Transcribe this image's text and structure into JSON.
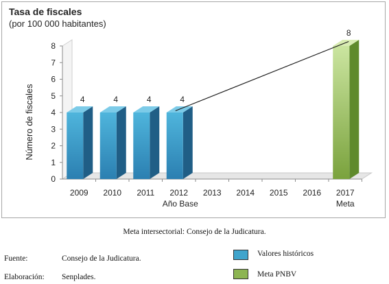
{
  "chart_data": {
    "type": "bar",
    "title": "Tasa de fiscales",
    "subtitle": "(por 100 000 habitantes)",
    "ylabel": "Número de fiscales",
    "ylim": [
      0,
      8
    ],
    "yticks": [
      "0",
      "1",
      "2",
      "3",
      "4",
      "5",
      "6",
      "7",
      "8"
    ],
    "categories": [
      "2009",
      "2010",
      "2011",
      "2012",
      "2013",
      "2014",
      "2015",
      "2016",
      "2017"
    ],
    "category_sublabels": [
      "",
      "",
      "",
      "Año Base",
      "",
      "",
      "",
      "",
      "Meta"
    ],
    "series": [
      {
        "name": "Valores históricos",
        "color": "#3fa4cc",
        "x": [
          "2009",
          "2010",
          "2011",
          "2012"
        ],
        "values": [
          4,
          4,
          4,
          4
        ]
      },
      {
        "name": "Meta PNBV",
        "color": "#8db552",
        "x": [
          "2017"
        ],
        "values": [
          8
        ]
      }
    ],
    "data_labels": [
      "4",
      "4",
      "4",
      "4",
      "8"
    ],
    "trend_line": {
      "from": [
        "2012",
        4
      ],
      "to": [
        "2017",
        8
      ]
    },
    "grid": false
  },
  "caption": "Meta intersectorial: Consejo de la Judicatura.",
  "source": {
    "label": "Fuente:",
    "value": "Consejo de la Judicatura."
  },
  "elaboration": {
    "label": "Elaboración:",
    "value": "Senplades."
  },
  "legend": [
    {
      "label": "Valores históricos",
      "color": "#3fa4cc"
    },
    {
      "label": "Meta PNBV",
      "color": "#8db552"
    }
  ]
}
